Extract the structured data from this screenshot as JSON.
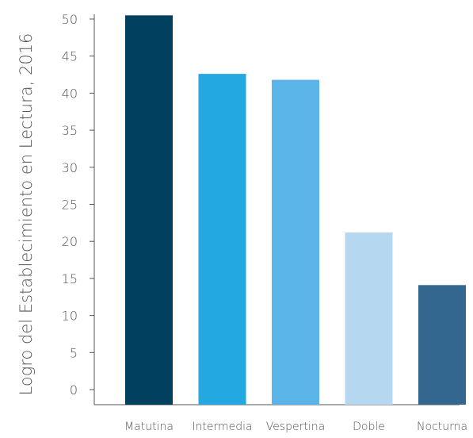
{
  "chart_data": {
    "type": "bar",
    "title": "",
    "xlabel": "",
    "ylabel": "Logro del Establecimiento en Lectura, 2016",
    "categories": [
      "Matutina",
      "Intermedia",
      "Vespertina",
      "Doble",
      "Nocturna"
    ],
    "values": [
      50.5,
      42.6,
      41.8,
      21.2,
      14.1
    ],
    "bar_colors": [
      "#01405f",
      "#24a8e2",
      "#5bb4e8",
      "#b5d8f0",
      "#34678f"
    ],
    "ylim": [
      0,
      50
    ],
    "yticks": [
      0,
      5,
      10,
      15,
      20,
      25,
      30,
      35,
      40,
      45,
      50
    ],
    "grid": false,
    "legend": "none"
  }
}
